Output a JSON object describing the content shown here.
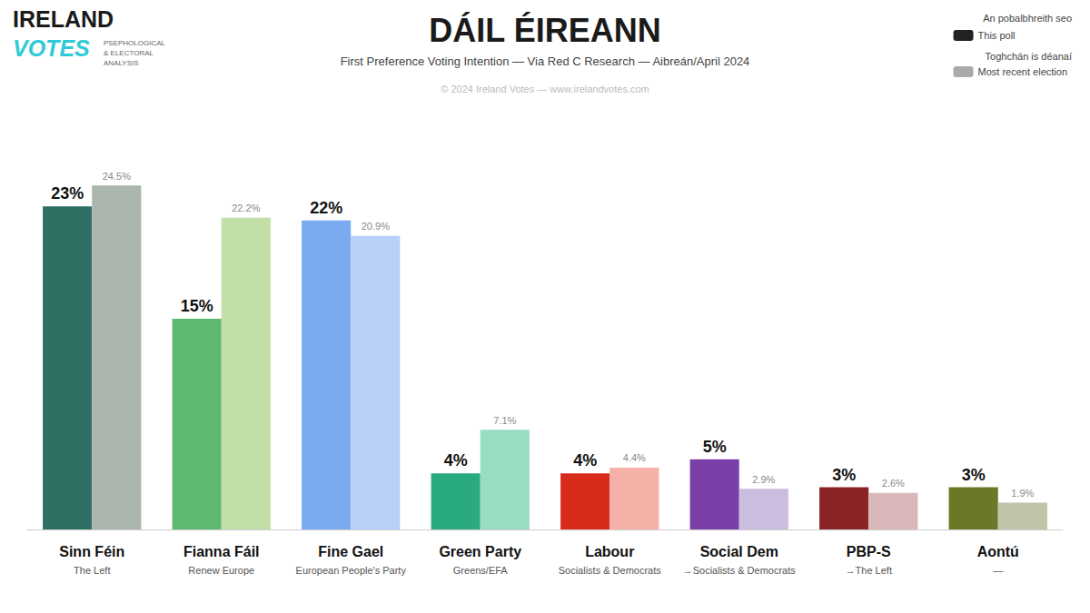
{
  "chart_data": {
    "type": "bar",
    "title": "DÁIL ÉIREANN",
    "subtitle": "First Preference Voting Intention — Via Red C Research — Aibreán/April 2024",
    "annotations": [
      "© 2024 Ireland Votes — www.irelandvotes.com",
      "IRELAND",
      "VOTES",
      "PSEPHOLOGICAL\n& ELECTORAL\nANALYSIS",
      "An pobalbhreith seo",
      "Toghchán is déanaí"
    ],
    "categories": [
      "Sinn Féin",
      "Fianna Fáil",
      "Fine Gael",
      "Green Party",
      "Labour",
      "Social Dem",
      "PBP-S",
      "Aontú"
    ],
    "affiliations": [
      "The Left",
      "Renew Europe",
      "European People's Party",
      "Greens/EFA",
      "Socialists & Democrats",
      "→Socialists & Democrats",
      "→The Left",
      "—"
    ],
    "series": [
      {
        "name": "This poll",
        "color": "#222222",
        "colors": [
          "#2e6e63",
          "#5db870",
          "#7aabf0",
          "#2aaa80",
          "#d92b1a",
          "#7b3fa8",
          "#8b2525",
          "#6b7828"
        ],
        "values": [
          23,
          15,
          22,
          4,
          4,
          5,
          3,
          3
        ],
        "value_labels": [
          "23%",
          "15%",
          "22%",
          "4%",
          "4%",
          "5%",
          "3%",
          "3%"
        ]
      },
      {
        "name": "Most recent election",
        "color": "#aaaaaa",
        "colors": [
          "#aab5ad",
          "#c2dfa8",
          "#b8d0f8",
          "#98ddc0",
          "#f5b0a8",
          "#cbbde0",
          "#d8b8b8",
          "#c0c4a8"
        ],
        "values": [
          24.5,
          22.2,
          20.9,
          7.1,
          4.4,
          2.9,
          2.6,
          1.9
        ],
        "value_labels": [
          "24.5%",
          "22.2%",
          "20.9%",
          "7.1%",
          "4.4%",
          "2.9%",
          "2.6%",
          "1.9%"
        ]
      }
    ],
    "ylim": [
      0,
      28
    ],
    "tick_labels": "x",
    "grid": false,
    "legend": "upper right",
    "data_labels": true
  }
}
